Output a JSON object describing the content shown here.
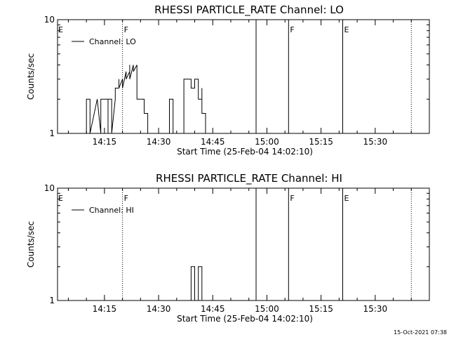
{
  "chart_data": [
    {
      "type": "line",
      "title": "RHESSI PARTICLE_RATE Channel: LO",
      "xlabel": "Start Time (25-Feb-04 14:02:10)",
      "ylabel": "Counts/sec",
      "y_scale": "log",
      "ylim": [
        1,
        10
      ],
      "y_ticks": [
        {
          "value": 1,
          "label": "1"
        },
        {
          "value": 10,
          "label": "10"
        }
      ],
      "xlim": [
        "14:02",
        "15:45"
      ],
      "x_ticks": [
        "14:15",
        "14:30",
        "14:45",
        "15:00",
        "15:15",
        "15:30"
      ],
      "legend": {
        "position": "top-left",
        "entries": [
          "Channel: LO"
        ]
      },
      "markers": [
        {
          "time": "14:20",
          "label": "F",
          "style": "dotted"
        },
        {
          "time": "14:57",
          "label": "",
          "style": "solid"
        },
        {
          "time": "15:06",
          "label": "F",
          "style": "solid"
        },
        {
          "time": "15:21",
          "label": "E",
          "style": "solid"
        },
        {
          "time": "15:40",
          "label": "",
          "style": "dotted"
        }
      ],
      "left_edge_label": "E",
      "series": [
        {
          "x": [
            "14:10",
            "14:10",
            "14:11",
            "14:11",
            "14:13",
            "14:13",
            "14:14",
            "14:14",
            "14:16",
            "14:16",
            "14:16",
            "14:17",
            "14:17",
            "14:18",
            "14:18",
            "14:19",
            "14:19",
            "14:19",
            "14:20",
            "14:20",
            "14:21",
            "14:21",
            "14:22",
            "14:22",
            "14:22",
            "14:23",
            "14:23",
            "14:24",
            "14:24",
            "14:24",
            "14:26",
            "14:26",
            "14:27",
            "14:27",
            "14:28",
            "14:28",
            "14:33",
            "14:33",
            "14:33",
            "14:34",
            "14:34",
            "14:37",
            "14:37",
            "14:37",
            "14:38",
            "14:38",
            "14:39",
            "14:39",
            "14:40",
            "14:40",
            "14:41",
            "14:41",
            "14:42",
            "14:42",
            "14:42",
            "14:43",
            "14:43"
          ],
          "y": [
            1,
            2,
            2,
            1,
            2,
            2,
            1,
            2,
            2,
            1,
            2,
            2,
            1,
            2,
            2.5,
            2.5,
            3,
            2.5,
            3,
            2.5,
            3.5,
            3,
            3.5,
            4,
            3,
            4,
            3.5,
            4,
            3,
            2,
            2,
            1.5,
            1.5,
            1,
            1,
            1,
            1,
            1.5,
            2,
            2,
            1,
            1,
            2.5,
            3,
            3,
            3,
            3,
            2.5,
            2.5,
            3,
            3,
            2,
            2,
            2.5,
            1.5,
            1.5,
            1
          ]
        }
      ]
    },
    {
      "type": "line",
      "title": "RHESSI PARTICLE_RATE Channel: HI",
      "xlabel": "Start Time (25-Feb-04 14:02:10)",
      "ylabel": "Counts/sec",
      "y_scale": "log",
      "ylim": [
        1,
        10
      ],
      "y_ticks": [
        {
          "value": 1,
          "label": "1"
        },
        {
          "value": 10,
          "label": "10"
        }
      ],
      "xlim": [
        "14:02",
        "15:45"
      ],
      "x_ticks": [
        "14:15",
        "14:30",
        "14:45",
        "15:00",
        "15:15",
        "15:30"
      ],
      "legend": {
        "position": "top-left",
        "entries": [
          "Channel: HI"
        ]
      },
      "markers": [
        {
          "time": "14:20",
          "label": "F",
          "style": "dotted"
        },
        {
          "time": "14:57",
          "label": "",
          "style": "solid"
        },
        {
          "time": "15:06",
          "label": "F",
          "style": "solid"
        },
        {
          "time": "15:21",
          "label": "E",
          "style": "solid"
        },
        {
          "time": "15:40",
          "label": "",
          "style": "dotted"
        }
      ],
      "left_edge_label": "E",
      "series": [
        {
          "x": [
            "14:39",
            "14:39",
            "14:40",
            "14:40",
            "14:41",
            "14:41",
            "14:42",
            "14:42"
          ],
          "y": [
            1,
            2,
            2,
            1,
            1,
            2,
            2,
            1
          ]
        }
      ]
    }
  ],
  "timestamp": "15-Oct-2021 07:38"
}
